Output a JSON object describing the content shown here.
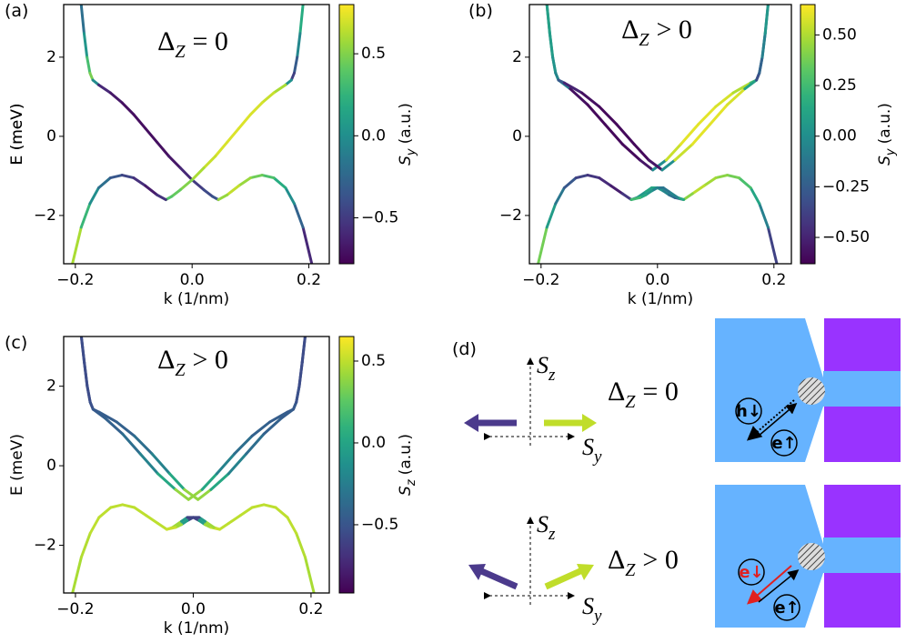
{
  "chart_data": [
    {
      "type": "line",
      "panel_label": "(a)",
      "title": {
        "symbol": "Δ",
        "subscript": "Z",
        "relation": "= 0"
      },
      "xlabel": "k (1/nm)",
      "ylabel": "E (meV)",
      "xlim": [
        -0.22,
        0.235
      ],
      "ylim": [
        -3.22,
        3.33
      ],
      "xticks": [
        {
          "value": -0.2,
          "label": "−0.2"
        },
        {
          "value": 0,
          "label": "0.0"
        },
        0.2
      ],
      "yticks": [
        {
          "value": -2,
          "label": "−2"
        },
        0,
        2
      ],
      "colormap": "viridis",
      "colorbar": {
        "label": {
          "symbol": "S",
          "subscript": "y",
          "unit": "(a.u.)"
        },
        "lim": [
          -0.78,
          0.8
        ],
        "ticks": [
          {
            "value": -0.5,
            "label": "−0.5"
          },
          {
            "value": 0,
            "label": "0.0"
          },
          0.5
        ]
      },
      "series": [
        {
          "x": [
            -0.19,
            -0.185,
            -0.18,
            -0.175,
            -0.17,
            -0.16,
            -0.14,
            -0.12,
            -0.1,
            -0.08,
            -0.06,
            -0.04,
            -0.02,
            0,
            0.02,
            0.035,
            0.045
          ],
          "values": [
            3.33,
            2.6,
            2.0,
            1.6,
            1.42,
            1.3,
            1.1,
            0.85,
            0.55,
            0.2,
            -0.15,
            -0.5,
            -0.8,
            -1.1,
            -1.35,
            -1.52,
            -1.6
          ],
          "color_values": [
            -0.3,
            -0.1,
            0.2,
            0.45,
            0.5,
            -0.55,
            -0.65,
            -0.7,
            -0.72,
            -0.72,
            -0.72,
            -0.7,
            -0.65,
            -0.55,
            -0.45,
            -0.4,
            -0.35
          ]
        },
        {
          "x": [
            0.19,
            0.185,
            0.18,
            0.175,
            0.17,
            0.16,
            0.14,
            0.12,
            0.1,
            0.08,
            0.06,
            0.04,
            0.02,
            0,
            -0.02,
            -0.035,
            -0.045
          ],
          "values": [
            3.33,
            2.6,
            2.0,
            1.6,
            1.42,
            1.3,
            1.1,
            0.85,
            0.55,
            0.2,
            -0.15,
            -0.5,
            -0.8,
            -1.1,
            -1.35,
            -1.52,
            -1.6
          ],
          "color_values": [
            0.3,
            0.1,
            -0.2,
            -0.45,
            -0.5,
            0.55,
            0.65,
            0.7,
            0.72,
            0.72,
            0.72,
            0.7,
            0.65,
            0.55,
            0.45,
            0.4,
            0.35
          ]
        },
        {
          "x": [
            -0.205,
            -0.19,
            -0.175,
            -0.16,
            -0.14,
            -0.12,
            -0.1,
            -0.08,
            -0.06,
            -0.045
          ],
          "values": [
            -3.22,
            -2.3,
            -1.7,
            -1.3,
            -1.05,
            -0.98,
            -1.05,
            -1.25,
            -1.48,
            -1.6
          ],
          "color_values": [
            0.75,
            0.45,
            0.1,
            -0.1,
            -0.3,
            -0.4,
            -0.5,
            -0.62,
            -0.7,
            -0.4
          ]
        },
        {
          "x": [
            0.205,
            0.19,
            0.175,
            0.16,
            0.14,
            0.12,
            0.1,
            0.08,
            0.06,
            0.045
          ],
          "values": [
            -3.22,
            -2.3,
            -1.7,
            -1.3,
            -1.05,
            -0.98,
            -1.05,
            -1.25,
            -1.48,
            -1.6
          ],
          "color_values": [
            -0.75,
            -0.45,
            -0.1,
            0.1,
            0.3,
            0.4,
            0.5,
            0.62,
            0.7,
            0.4
          ]
        }
      ]
    },
    {
      "type": "line",
      "panel_label": "(b)",
      "title": {
        "symbol": "Δ",
        "subscript": "Z",
        "relation": "> 0"
      },
      "xlabel": "k (1/nm)",
      "ylabel": "E (meV)",
      "xlim": [
        -0.22,
        0.23
      ],
      "ylim": [
        -3.22,
        3.33
      ],
      "xticks": [
        {
          "value": -0.2,
          "label": "−0.2"
        },
        {
          "value": 0,
          "label": "0.0"
        },
        0.2
      ],
      "yticks": [
        {
          "value": -2,
          "label": "−2"
        },
        0,
        2
      ],
      "colormap": "viridis",
      "colorbar": {
        "label": {
          "symbol": "S",
          "subscript": "y",
          "unit": "(a.u.)"
        },
        "lim": [
          -0.63,
          0.65
        ],
        "ticks": [
          {
            "value": -0.5,
            "label": "−0.50"
          },
          {
            "value": -0.25,
            "label": "−0.25"
          },
          {
            "value": 0,
            "label": "0.00"
          },
          0.25,
          {
            "value": 0.5,
            "label": "0.50"
          }
        ]
      },
      "series": [
        {
          "x": [
            -0.19,
            -0.185,
            -0.18,
            -0.175,
            -0.17,
            -0.15,
            -0.12,
            -0.09,
            -0.06,
            -0.03,
            -0.008,
            0.015,
            0.04,
            0.07,
            0.1,
            0.13,
            0.16,
            0.17,
            0.175,
            0.18,
            0.185,
            0.19
          ],
          "values": [
            3.33,
            2.6,
            2.0,
            1.6,
            1.42,
            1.2,
            0.8,
            0.3,
            -0.2,
            -0.6,
            -0.85,
            -0.6,
            -0.2,
            0.3,
            0.75,
            1.1,
            1.35,
            1.42,
            1.6,
            2.0,
            2.6,
            3.33
          ],
          "color_values": [
            -0.1,
            0.0,
            0.15,
            0.3,
            0.35,
            -0.55,
            -0.6,
            -0.6,
            -0.6,
            -0.6,
            -0.5,
            0.5,
            0.6,
            0.6,
            0.6,
            0.55,
            0.45,
            0.1,
            0.0,
            -0.05,
            -0.1,
            -0.1
          ]
        },
        {
          "x": [
            -0.19,
            -0.185,
            -0.18,
            -0.175,
            -0.17,
            -0.16,
            -0.13,
            -0.1,
            -0.07,
            -0.04,
            -0.015,
            0.008,
            0.03,
            0.06,
            0.09,
            0.12,
            0.15,
            0.17,
            0.175,
            0.18,
            0.185,
            0.19
          ],
          "values": [
            3.33,
            2.6,
            2.0,
            1.6,
            1.42,
            1.35,
            1.1,
            0.75,
            0.3,
            -0.2,
            -0.6,
            -0.85,
            -0.6,
            -0.2,
            0.3,
            0.8,
            1.2,
            1.42,
            1.6,
            2.0,
            2.6,
            3.33
          ],
          "color_values": [
            0.1,
            0.1,
            0.05,
            0.0,
            -0.1,
            -0.45,
            -0.55,
            -0.6,
            -0.6,
            -0.6,
            -0.6,
            -0.5,
            0.5,
            0.6,
            0.6,
            0.6,
            0.55,
            -0.35,
            -0.3,
            -0.15,
            0.0,
            0.1
          ]
        },
        {
          "x": [
            -0.205,
            -0.19,
            -0.175,
            -0.16,
            -0.14,
            -0.12,
            -0.1,
            -0.08,
            -0.06,
            -0.045,
            -0.035,
            -0.02,
            -0.01,
            0.0,
            0.01,
            0.02,
            0.03,
            0.045
          ],
          "values": [
            -3.22,
            -2.3,
            -1.7,
            -1.3,
            -1.05,
            -0.98,
            -1.05,
            -1.25,
            -1.45,
            -1.6,
            -1.55,
            -1.4,
            -1.3,
            -1.3,
            -1.38,
            -1.48,
            -1.55,
            -1.6
          ],
          "color_values": [
            0.55,
            0.2,
            -0.05,
            -0.2,
            -0.35,
            -0.4,
            -0.45,
            -0.5,
            -0.55,
            -0.3,
            0.0,
            0.1,
            0.15,
            0.1,
            0.0,
            -0.1,
            -0.2,
            -0.3
          ]
        },
        {
          "x": [
            0.205,
            0.19,
            0.175,
            0.16,
            0.14,
            0.12,
            0.1,
            0.08,
            0.06,
            0.045,
            0.035,
            0.02,
            0.01,
            0.0,
            -0.01,
            -0.02,
            -0.03,
            -0.045
          ],
          "values": [
            -3.22,
            -2.3,
            -1.7,
            -1.3,
            -1.05,
            -0.98,
            -1.05,
            -1.25,
            -1.45,
            -1.6,
            -1.55,
            -1.4,
            -1.3,
            -1.3,
            -1.38,
            -1.48,
            -1.55,
            -1.6
          ],
          "color_values": [
            -0.55,
            -0.2,
            0.05,
            0.2,
            0.35,
            0.4,
            0.45,
            0.5,
            0.55,
            0.3,
            0.0,
            -0.1,
            -0.15,
            -0.1,
            0.0,
            0.1,
            0.2,
            0.3
          ]
        }
      ]
    },
    {
      "type": "line",
      "panel_label": "(c)",
      "title": {
        "symbol": "Δ",
        "subscript": "Z",
        "relation": "> 0"
      },
      "xlabel": "k (1/nm)",
      "ylabel": "E (meV)",
      "xlim": [
        -0.22,
        0.231
      ],
      "ylim": [
        -3.2,
        3.25
      ],
      "xticks": [
        {
          "value": -0.2,
          "label": "−0.2"
        },
        {
          "value": 0,
          "label": "0.0"
        },
        0.2
      ],
      "yticks": [
        {
          "value": -2,
          "label": "−2"
        },
        0,
        2
      ],
      "colormap": "viridis",
      "colorbar": {
        "label": {
          "symbol": "S",
          "subscript": "z",
          "unit": "(a.u.)"
        },
        "lim": [
          -0.917,
          0.65
        ],
        "ticks": [
          {
            "value": -0.5,
            "label": "−0.5"
          },
          {
            "value": 0,
            "label": "0.0"
          },
          0.5
        ]
      },
      "series": [
        {
          "x": [
            -0.19,
            -0.185,
            -0.18,
            -0.175,
            -0.17,
            -0.15,
            -0.12,
            -0.09,
            -0.06,
            -0.03,
            -0.008,
            0.015,
            0.04,
            0.07,
            0.1,
            0.13,
            0.16,
            0.17,
            0.175,
            0.18,
            0.185,
            0.19
          ],
          "values": [
            3.25,
            2.6,
            2.0,
            1.6,
            1.42,
            1.2,
            0.8,
            0.3,
            -0.2,
            -0.6,
            -0.85,
            -0.6,
            -0.2,
            0.3,
            0.75,
            1.1,
            1.35,
            1.42,
            1.6,
            2.0,
            2.6,
            3.25
          ],
          "color_values": [
            -0.55,
            -0.55,
            -0.55,
            -0.5,
            -0.45,
            -0.45,
            -0.4,
            -0.3,
            -0.15,
            0.2,
            0.6,
            0.2,
            -0.15,
            -0.3,
            -0.4,
            -0.45,
            -0.45,
            -0.5,
            -0.55,
            -0.55,
            -0.55,
            -0.55
          ]
        },
        {
          "x": [
            -0.19,
            -0.185,
            -0.18,
            -0.175,
            -0.17,
            -0.16,
            -0.13,
            -0.1,
            -0.07,
            -0.04,
            -0.015,
            0.008,
            0.03,
            0.06,
            0.09,
            0.12,
            0.15,
            0.17,
            0.175,
            0.18,
            0.185,
            0.19
          ],
          "values": [
            3.25,
            2.6,
            2.0,
            1.6,
            1.42,
            1.35,
            1.1,
            0.75,
            0.3,
            -0.2,
            -0.6,
            -0.85,
            -0.6,
            -0.2,
            0.3,
            0.8,
            1.2,
            1.42,
            1.6,
            2.0,
            2.6,
            3.25
          ],
          "color_values": [
            -0.55,
            -0.55,
            -0.55,
            -0.55,
            -0.5,
            -0.45,
            -0.45,
            -0.4,
            -0.3,
            -0.15,
            0.2,
            0.6,
            0.2,
            -0.15,
            -0.3,
            -0.4,
            -0.45,
            -0.45,
            -0.5,
            -0.55,
            -0.55,
            -0.55
          ]
        },
        {
          "x": [
            -0.205,
            -0.19,
            -0.175,
            -0.16,
            -0.14,
            -0.12,
            -0.1,
            -0.08,
            -0.06,
            -0.045,
            -0.035,
            -0.02,
            -0.01,
            0.0,
            0.01,
            0.02,
            0.03,
            0.045
          ],
          "values": [
            -3.2,
            -2.3,
            -1.7,
            -1.3,
            -1.05,
            -0.98,
            -1.05,
            -1.25,
            -1.45,
            -1.6,
            -1.55,
            -1.4,
            -1.3,
            -1.3,
            -1.38,
            -1.48,
            -1.55,
            -1.6
          ],
          "color_values": [
            0.45,
            0.45,
            0.5,
            0.5,
            0.5,
            0.5,
            0.5,
            0.5,
            0.5,
            0.5,
            0.55,
            0.3,
            -0.4,
            -0.8,
            -0.4,
            0.3,
            0.55,
            0.5
          ]
        },
        {
          "x": [
            0.205,
            0.19,
            0.175,
            0.16,
            0.14,
            0.12,
            0.1,
            0.08,
            0.06,
            0.045,
            0.035,
            0.02,
            0.01,
            0.0,
            -0.01,
            -0.02,
            -0.03,
            -0.045
          ],
          "values": [
            -3.2,
            -2.3,
            -1.7,
            -1.3,
            -1.05,
            -0.98,
            -1.05,
            -1.25,
            -1.45,
            -1.6,
            -1.55,
            -1.4,
            -1.3,
            -1.3,
            -1.38,
            -1.48,
            -1.55,
            -1.6
          ],
          "color_values": [
            0.45,
            0.45,
            0.5,
            0.5,
            0.5,
            0.5,
            0.5,
            0.5,
            0.5,
            0.5,
            0.55,
            0.3,
            -0.4,
            -0.8,
            -0.4,
            0.3,
            0.55,
            0.5
          ]
        }
      ]
    }
  ],
  "diagram": {
    "panel_label": "(d)",
    "rows": [
      {
        "title": {
          "symbol": "Δ",
          "subscript": "Z",
          "relation": "= 0"
        },
        "axis_labels": [
          {
            "symbol": "S",
            "subscript": "z"
          },
          {
            "symbol": "S",
            "subscript": "y"
          }
        ],
        "particles": [
          "h↓",
          "e↑"
        ]
      },
      {
        "title": {
          "symbol": "Δ",
          "subscript": "Z",
          "relation": "> 0"
        },
        "axis_labels": [
          {
            "symbol": "S",
            "subscript": "z"
          },
          {
            "symbol": "S",
            "subscript": "y"
          }
        ],
        "particles": [
          "e↓",
          "e↑"
        ]
      }
    ]
  }
}
